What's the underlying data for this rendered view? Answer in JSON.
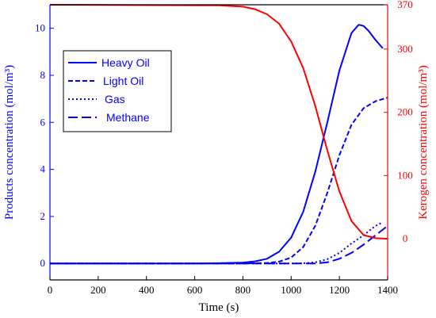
{
  "chart_data": {
    "type": "line",
    "xlabel": "Time (s)",
    "ylabel_left": "Products concentration (mol/m³)",
    "ylabel_right": "Kerogen concentration (mol/m³)",
    "xlim": [
      0,
      1400
    ],
    "ylim_left": [
      -0.7,
      11
    ],
    "ylim_right": [
      -65,
      370
    ],
    "x_ticks": [
      "0",
      "200",
      "400",
      "600",
      "800",
      "1000",
      "1200",
      "1400"
    ],
    "y_left_ticks": [
      "0",
      "2",
      "4",
      "6",
      "8",
      "10"
    ],
    "y_right_ticks": [
      "0",
      "100",
      "200",
      "300",
      "370"
    ],
    "grid": false,
    "legend_placement": "upper-left",
    "colors": {
      "products": "#0000ff",
      "kerogen": "#ff0000",
      "axis": "#000000"
    },
    "series": [
      {
        "name": "Heavy Oil",
        "axis": "left",
        "style": "solid",
        "x": [
          0,
          600,
          700,
          800,
          850,
          900,
          950,
          1000,
          1050,
          1100,
          1150,
          1200,
          1250,
          1280,
          1300,
          1320,
          1350,
          1380
        ],
        "y": [
          0,
          0,
          0.01,
          0.04,
          0.09,
          0.2,
          0.5,
          1.1,
          2.2,
          3.9,
          6.0,
          8.2,
          9.8,
          10.15,
          10.1,
          9.9,
          9.5,
          9.15
        ]
      },
      {
        "name": "Light Oil",
        "axis": "left",
        "style": "dashed",
        "x": [
          0,
          800,
          900,
          950,
          1000,
          1050,
          1100,
          1150,
          1200,
          1250,
          1300,
          1350,
          1400
        ],
        "y": [
          0,
          0,
          0.02,
          0.08,
          0.25,
          0.7,
          1.6,
          3.0,
          4.6,
          5.9,
          6.6,
          6.9,
          7.05
        ]
      },
      {
        "name": "Gas",
        "axis": "left",
        "style": "dotted",
        "x": [
          0,
          1000,
          1050,
          1100,
          1150,
          1200,
          1250,
          1300,
          1350,
          1380
        ],
        "y": [
          0,
          0,
          0.01,
          0.05,
          0.18,
          0.45,
          0.85,
          1.2,
          1.6,
          1.75
        ]
      },
      {
        "name": "Methane",
        "axis": "left",
        "style": "long-dashed",
        "x": [
          0,
          1100,
          1150,
          1200,
          1250,
          1300,
          1350,
          1400
        ],
        "y": [
          0,
          0,
          0.05,
          0.2,
          0.45,
          0.8,
          1.2,
          1.6
        ]
      },
      {
        "axis": "right",
        "style": "solid",
        "x": [
          0,
          700,
          800,
          850,
          900,
          950,
          1000,
          1050,
          1100,
          1150,
          1200,
          1250,
          1300,
          1350,
          1400
        ],
        "y": [
          370,
          369,
          367,
          363,
          355,
          340,
          312,
          270,
          210,
          140,
          75,
          28,
          6,
          1,
          0
        ]
      }
    ]
  }
}
